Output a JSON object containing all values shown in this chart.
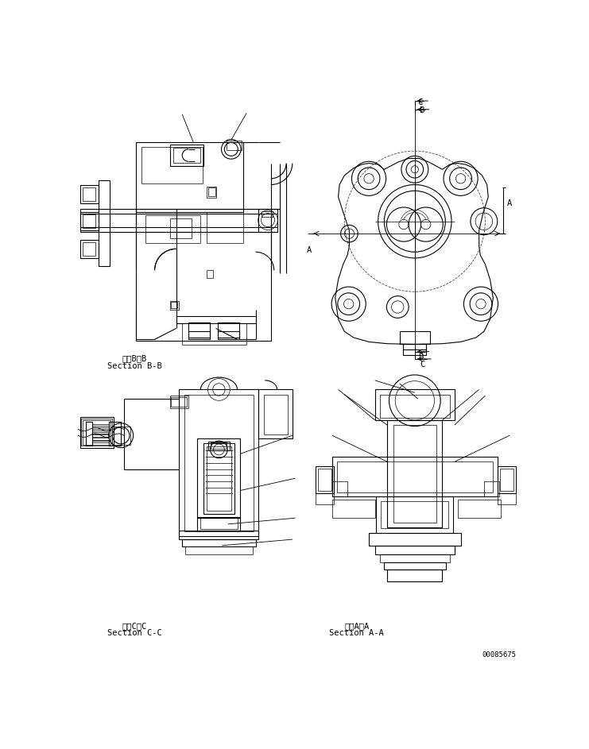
{
  "bg_color": "#ffffff",
  "line_color": "#000000",
  "fig_width": 7.41,
  "fig_height": 9.43,
  "dpi": 100,
  "label_BB_line1": "断面B－B",
  "label_BB_line2": "Section B-B",
  "label_CC_line1": "断面C－C",
  "label_CC_line2": "Section C-C",
  "label_AA_line1": "断面A－A",
  "label_AA_line2": "Section A-A",
  "part_number": "00085675",
  "font_size_label": 7.5,
  "font_size_part": 6.5
}
